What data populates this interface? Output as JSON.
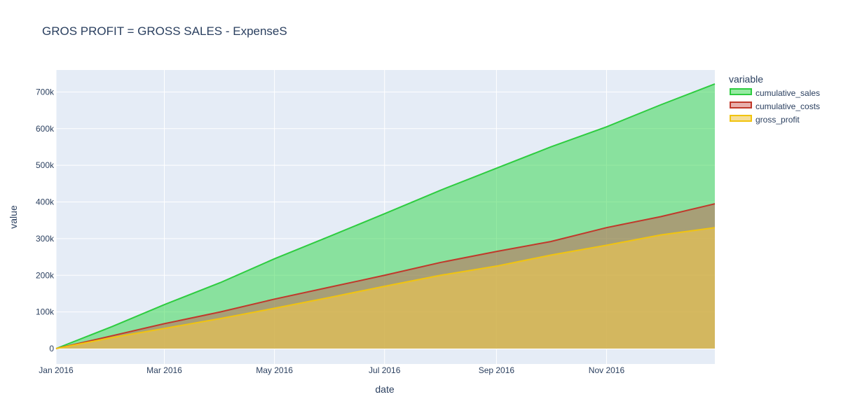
{
  "chart_data": {
    "type": "area",
    "title": "GROS PROFIT = GROSS SALES - ExpenseS",
    "xlabel": "date",
    "ylabel": "value",
    "xlim": [
      "2016-01-01",
      "2016-12-31"
    ],
    "ylim": [
      -42000,
      760000
    ],
    "x_ticks": [
      {
        "date": "2016-01-01",
        "label": "Jan 2016"
      },
      {
        "date": "2016-03-01",
        "label": "Mar 2016"
      },
      {
        "date": "2016-05-01",
        "label": "May 2016"
      },
      {
        "date": "2016-07-01",
        "label": "Jul 2016"
      },
      {
        "date": "2016-09-01",
        "label": "Sep 2016"
      },
      {
        "date": "2016-11-01",
        "label": "Nov 2016"
      }
    ],
    "y_ticks": [
      {
        "value": 0,
        "label": "0"
      },
      {
        "value": 100000,
        "label": "100k"
      },
      {
        "value": 200000,
        "label": "200k"
      },
      {
        "value": 300000,
        "label": "300k"
      },
      {
        "value": 400000,
        "label": "400k"
      },
      {
        "value": 500000,
        "label": "500k"
      },
      {
        "value": 600000,
        "label": "600k"
      },
      {
        "value": 700000,
        "label": "700k"
      }
    ],
    "grid": true,
    "legend": {
      "title": "variable",
      "position": "right"
    },
    "background_color": "#e5ecf6",
    "series": [
      {
        "name": "cumulative_sales",
        "line_color": "#2ecc40",
        "fill_color": "rgba(46, 214, 70, 0.5)",
        "x": [
          "2016-01-01",
          "2016-02-01",
          "2016-03-01",
          "2016-04-01",
          "2016-05-01",
          "2016-06-01",
          "2016-07-01",
          "2016-08-01",
          "2016-09-01",
          "2016-10-01",
          "2016-11-01",
          "2016-12-01",
          "2016-12-31"
        ],
        "values": [
          0,
          60000,
          120000,
          180000,
          245000,
          307000,
          368000,
          432000,
          492000,
          550000,
          605000,
          665000,
          722000
        ]
      },
      {
        "name": "cumulative_costs",
        "line_color": "#c0392b",
        "fill_color": "rgba(205, 80, 70, 0.45)",
        "x": [
          "2016-01-01",
          "2016-02-01",
          "2016-03-01",
          "2016-04-01",
          "2016-05-01",
          "2016-06-01",
          "2016-07-01",
          "2016-08-01",
          "2016-09-01",
          "2016-10-01",
          "2016-11-01",
          "2016-12-01",
          "2016-12-31"
        ],
        "values": [
          0,
          35000,
          68000,
          100000,
          135000,
          168000,
          200000,
          235000,
          265000,
          292000,
          330000,
          360000,
          395000
        ]
      },
      {
        "name": "gross_profit",
        "line_color": "#f1c40f",
        "fill_color": "rgba(240, 200, 80, 0.6)",
        "x": [
          "2016-01-01",
          "2016-02-01",
          "2016-03-01",
          "2016-04-01",
          "2016-05-01",
          "2016-06-01",
          "2016-07-01",
          "2016-08-01",
          "2016-09-01",
          "2016-10-01",
          "2016-11-01",
          "2016-12-01",
          "2016-12-31"
        ],
        "values": [
          0,
          30000,
          55000,
          82000,
          110000,
          140000,
          170000,
          200000,
          225000,
          255000,
          282000,
          310000,
          330000
        ]
      }
    ]
  }
}
